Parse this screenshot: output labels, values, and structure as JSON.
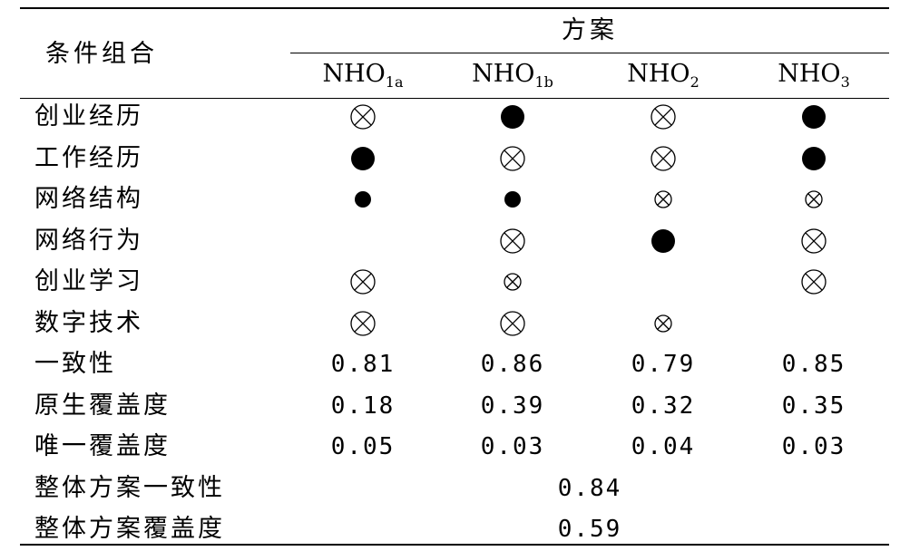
{
  "header": {
    "condition_label": "条件组合",
    "group_title": "方案",
    "columns": [
      {
        "main": "NHO",
        "sub": "1a"
      },
      {
        "main": "NHO",
        "sub": "1b"
      },
      {
        "main": "NHO",
        "sub": "2"
      },
      {
        "main": "NHO",
        "sub": "3"
      }
    ]
  },
  "condition_rows": [
    {
      "label": "创业经历",
      "cells": [
        "absent-core",
        "present-core",
        "absent-core",
        "present-core"
      ]
    },
    {
      "label": "工作经历",
      "cells": [
        "present-core",
        "absent-core",
        "absent-core",
        "present-core"
      ]
    },
    {
      "label": "网络结构",
      "cells": [
        "present-peripheral",
        "present-peripheral",
        "absent-peripheral",
        "absent-peripheral"
      ]
    },
    {
      "label": "网络行为",
      "cells": [
        "none",
        "absent-core",
        "present-core",
        "absent-core"
      ]
    },
    {
      "label": "创业学习",
      "cells": [
        "absent-core",
        "absent-peripheral",
        "none",
        "absent-core"
      ]
    },
    {
      "label": "数字技术",
      "cells": [
        "absent-core",
        "absent-core",
        "absent-peripheral",
        "none"
      ]
    }
  ],
  "metric_rows": [
    {
      "label": "一致性",
      "values": [
        "0.81",
        "0.86",
        "0.79",
        "0.85"
      ]
    },
    {
      "label": "原生覆盖度",
      "values": [
        "0.18",
        "0.39",
        "0.32",
        "0.35"
      ]
    },
    {
      "label": "唯一覆盖度",
      "values": [
        "0.05",
        "0.03",
        "0.04",
        "0.03"
      ]
    }
  ],
  "overall_rows": [
    {
      "label": "整体方案一致性",
      "value": "0.84"
    },
    {
      "label": "整体方案覆盖度",
      "value": "0.59"
    }
  ]
}
